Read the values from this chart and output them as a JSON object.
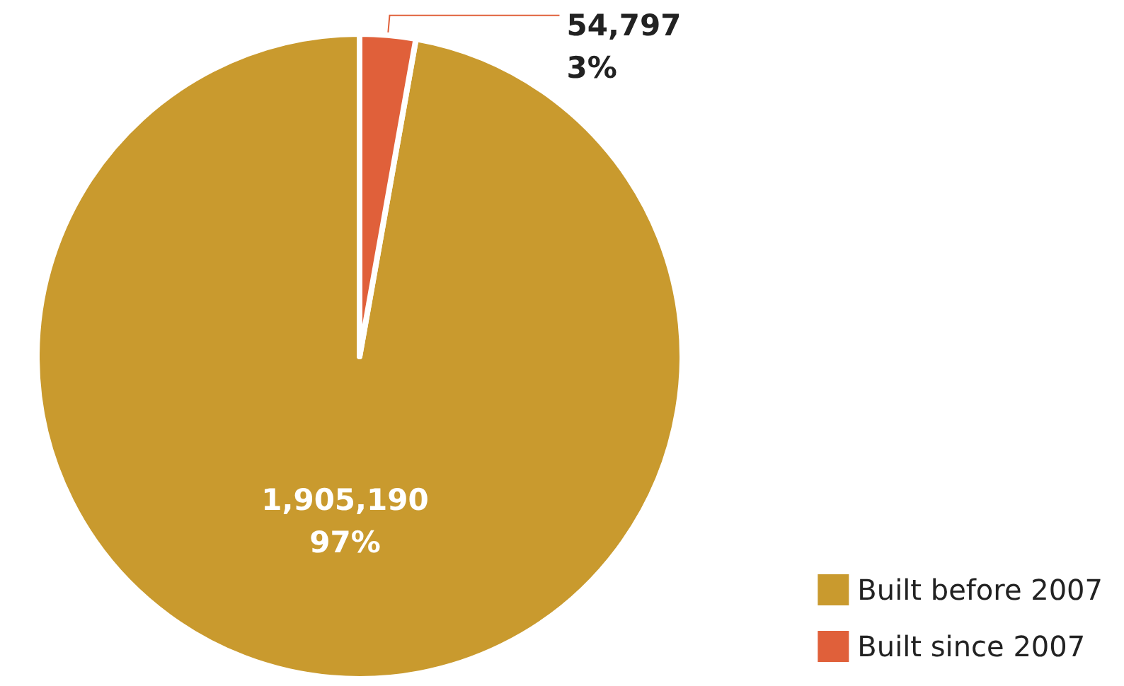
{
  "chart_data": {
    "type": "pie",
    "categories": [
      "Built before 2007",
      "Built since 2007"
    ],
    "values": [
      1905190,
      54797
    ],
    "colors": [
      "#c99a2e",
      "#e0603a"
    ],
    "value_labels": [
      "1,905,190\n97%",
      "54,797\n3%"
    ],
    "legend": "bottom right"
  }
}
